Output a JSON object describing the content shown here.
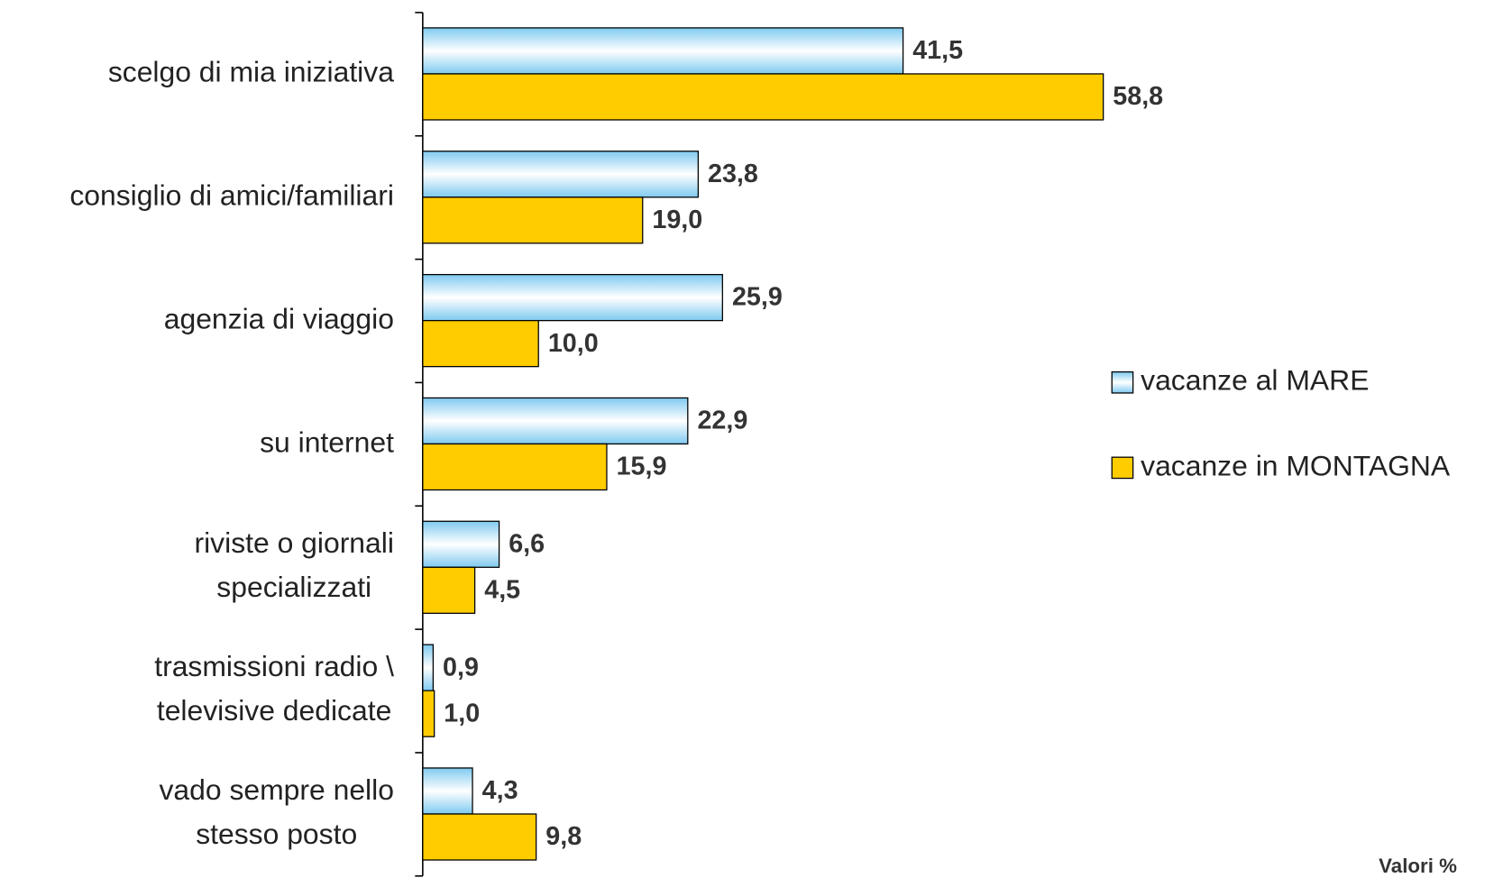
{
  "chart_data": {
    "type": "barh",
    "categories": [
      "scelgo di mia iniziativa",
      "consiglio di amici/familiari",
      "agenzia di viaggio",
      "su internet",
      "riviste o giornali\nspecializzati",
      "trasmissioni radio \\\ntelevisive dedicate",
      "vado sempre nello\nstesso posto"
    ],
    "series": [
      {
        "name": "vacanze al MARE",
        "color": "#9fd8f5",
        "values": [
          41.5,
          23.8,
          25.9,
          22.9,
          6.6,
          0.9,
          4.3
        ],
        "value_labels": [
          "41,5",
          "23,8",
          "25,9",
          "22,9",
          "6,6",
          "0,9",
          "4,3"
        ]
      },
      {
        "name": "vacanze in MONTAGNA",
        "color": "#ffcc00",
        "values": [
          58.8,
          19.0,
          10.0,
          15.9,
          4.5,
          1.0,
          9.8
        ],
        "value_labels": [
          "58,8",
          "19,0",
          "10,0",
          "15,9",
          "4,5",
          "1,0",
          "9,8"
        ]
      }
    ],
    "note": "Valori %",
    "legend": "right"
  }
}
